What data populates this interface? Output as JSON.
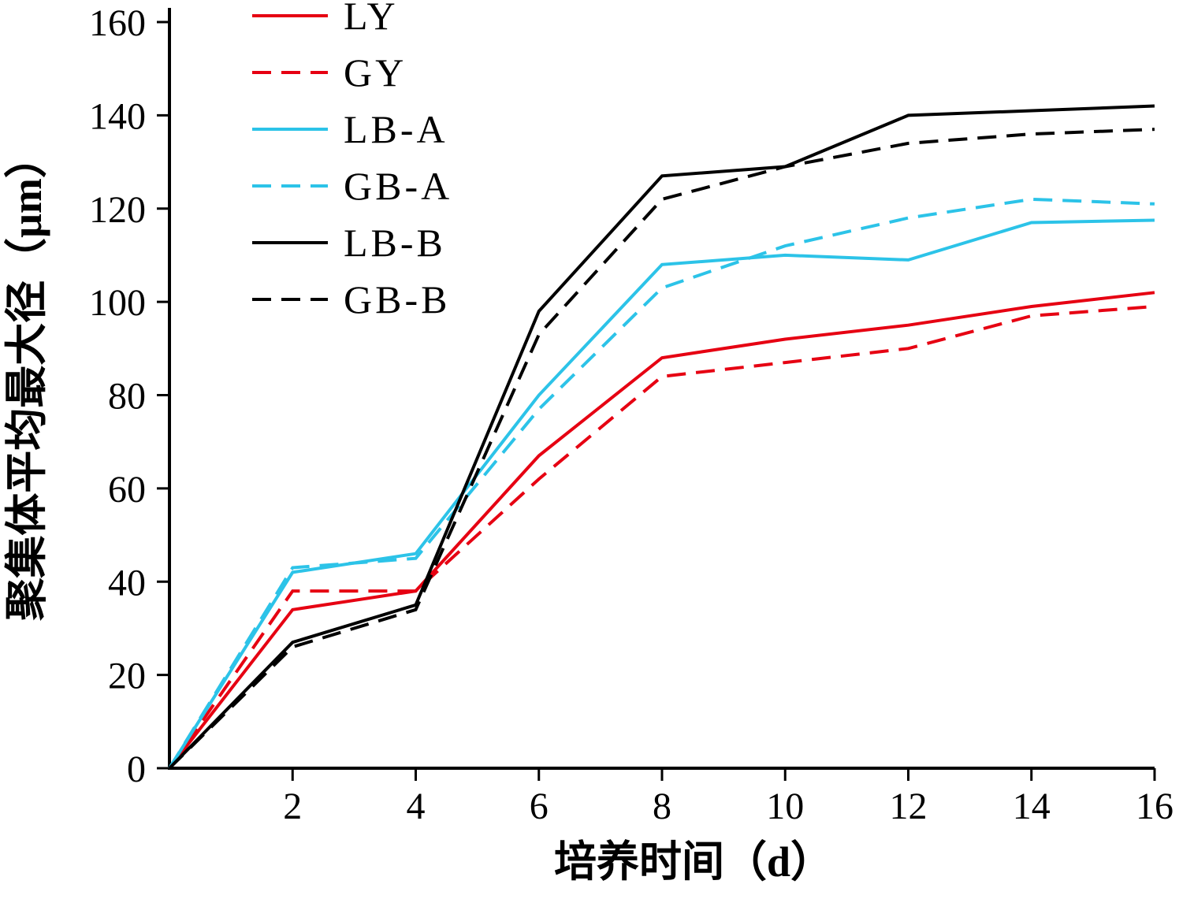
{
  "chart_data": {
    "type": "line",
    "title": "",
    "xlabel": "培养时间（d）",
    "ylabel": "聚集体平均最大径（μm）",
    "xlim": [
      0,
      16
    ],
    "ylim": [
      0,
      160
    ],
    "x_ticks": [
      2,
      4,
      6,
      8,
      10,
      12,
      14,
      16
    ],
    "y_ticks": [
      0,
      20,
      40,
      60,
      80,
      100,
      120,
      140,
      160
    ],
    "grid": false,
    "legend_position": "top-left",
    "x": [
      0,
      2,
      4,
      6,
      8,
      10,
      12,
      14,
      16
    ],
    "series": [
      {
        "name": "LY",
        "color": "#e60012",
        "dash": "solid",
        "values": [
          0,
          34,
          38,
          67,
          88,
          92,
          95,
          99,
          102
        ]
      },
      {
        "name": "GY",
        "color": "#e60012",
        "dash": "dashed",
        "values": [
          0,
          38,
          38,
          62,
          84,
          87,
          90,
          97,
          99
        ]
      },
      {
        "name": "LB-A",
        "color": "#2cc3e8",
        "dash": "solid",
        "values": [
          0,
          42,
          46,
          80,
          108,
          110,
          109,
          117,
          117.5
        ]
      },
      {
        "name": "GB-A",
        "color": "#2cc3e8",
        "dash": "dashed",
        "values": [
          0,
          43,
          45,
          77,
          103,
          112,
          118,
          122,
          121
        ]
      },
      {
        "name": "LB-B",
        "color": "#000000",
        "dash": "solid",
        "values": [
          0,
          27,
          35,
          98,
          127,
          129,
          140,
          141,
          142
        ]
      },
      {
        "name": "GB-B",
        "color": "#000000",
        "dash": "dashed",
        "values": [
          0,
          26,
          34,
          93,
          122,
          129,
          134,
          136,
          137
        ]
      }
    ]
  }
}
